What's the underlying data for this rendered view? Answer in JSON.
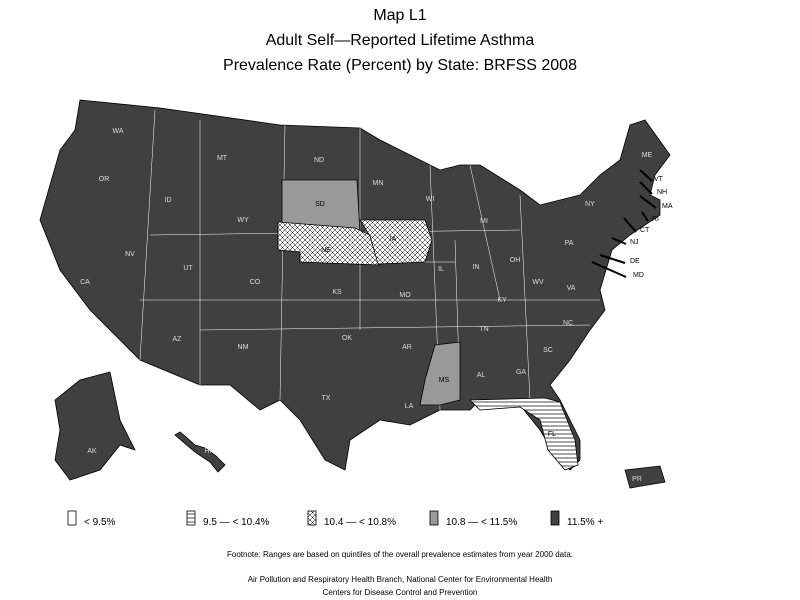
{
  "header": {
    "lines": [
      "Map L1",
      "Adult Self—Reported Lifetime Asthma",
      "Prevalence Rate (Percent) by State: BRFSS 2008"
    ]
  },
  "legend": [
    {
      "label": "< 9.5%",
      "pattern": "solid",
      "color": "#ffffff"
    },
    {
      "label": "9.5 — < 10.4%",
      "pattern": "hlines",
      "color": "#ffffff"
    },
    {
      "label": "10.4 — < 10.8%",
      "pattern": "cross",
      "color": "#ffffff"
    },
    {
      "label": "10.8 — < 11.5%",
      "pattern": "solid",
      "color": "#999999"
    },
    {
      "label": "11.5% +",
      "pattern": "solid",
      "color": "#404040"
    }
  ],
  "states": [
    {
      "label": "WA",
      "class": 4
    },
    {
      "label": "OR",
      "class": 4
    },
    {
      "label": "CA",
      "class": 4
    },
    {
      "label": "NV",
      "class": 4
    },
    {
      "label": "ID",
      "class": 4
    },
    {
      "label": "MT",
      "class": 4
    },
    {
      "label": "WY",
      "class": 4
    },
    {
      "label": "UT",
      "class": 4
    },
    {
      "label": "AZ",
      "class": 4
    },
    {
      "label": "CO",
      "class": 4
    },
    {
      "label": "NM",
      "class": 4
    },
    {
      "label": "ND",
      "class": 4
    },
    {
      "label": "SD",
      "class": 3
    },
    {
      "label": "NE",
      "class": 2
    },
    {
      "label": "KS",
      "class": 4
    },
    {
      "label": "OK",
      "class": 4
    },
    {
      "label": "TX",
      "class": 4
    },
    {
      "label": "MN",
      "class": 4
    },
    {
      "label": "IA",
      "class": 2
    },
    {
      "label": "MO",
      "class": 4
    },
    {
      "label": "AR",
      "class": 4
    },
    {
      "label": "LA",
      "class": 4
    },
    {
      "label": "WI",
      "class": 4
    },
    {
      "label": "IL",
      "class": 4
    },
    {
      "label": "MI",
      "class": 4
    },
    {
      "label": "IN",
      "class": 4
    },
    {
      "label": "OH",
      "class": 4
    },
    {
      "label": "KY",
      "class": 4
    },
    {
      "label": "TN",
      "class": 4
    },
    {
      "label": "MS",
      "class": 3
    },
    {
      "label": "AL",
      "class": 4
    },
    {
      "label": "GA",
      "class": 4
    },
    {
      "label": "FL",
      "class": 1
    },
    {
      "label": "SC",
      "class": 4
    },
    {
      "label": "NC",
      "class": 4
    },
    {
      "label": "VA",
      "class": 4
    },
    {
      "label": "WV",
      "class": 4
    },
    {
      "label": "PA",
      "class": 4
    },
    {
      "label": "NY",
      "class": 4
    },
    {
      "label": "ME",
      "class": 4
    },
    {
      "label": "VT",
      "class": 4
    },
    {
      "label": "NH",
      "class": 4
    },
    {
      "label": "MA",
      "class": 4
    },
    {
      "label": "RI",
      "class": 4
    },
    {
      "label": "CT",
      "class": 4
    },
    {
      "label": "NJ",
      "class": 4
    },
    {
      "label": "DE",
      "class": 4
    },
    {
      "label": "MD",
      "class": 4
    },
    {
      "label": "AK",
      "class": 4
    },
    {
      "label": "HI",
      "class": 4
    },
    {
      "label": "PR",
      "class": 4
    }
  ],
  "footnote": "Footnote: Ranges are based on quintiles of the overall prevalence estimates from year 2000 data.",
  "credits": [
    "Air Pollution and Respiratory Health Branch, National Center for Environmental Health",
    "Centers for Disease Control and Prevention"
  ]
}
